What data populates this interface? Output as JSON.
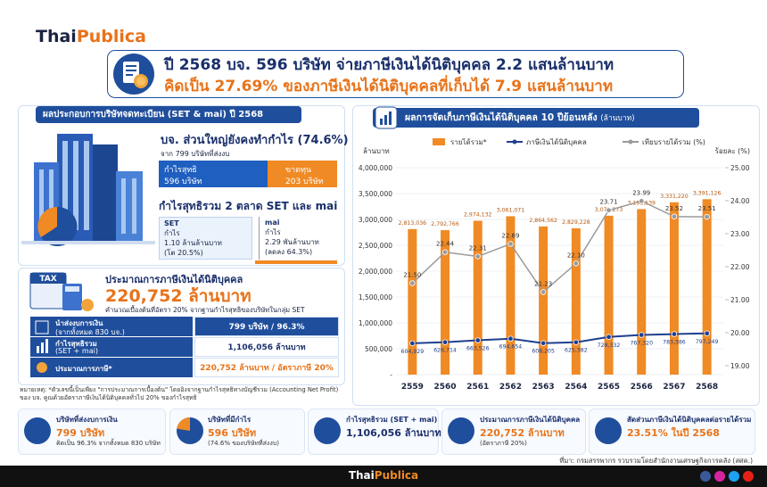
{
  "brand": {
    "thai": "Thai",
    "publica": "Publica"
  },
  "header": {
    "line1": "ปี 2568 บจ. 596 บริษัท จ่ายภาษีเงินได้นิติบุคคล 2.2 แสนล้านบาท",
    "line2": "คิดเป็น 27.69% ของภาษีเงินได้นิติบุคคลที่เก็บได้ 7.9 แสนล้านบาท"
  },
  "results": {
    "title": "ผลประกอบการบริษัทจดทะเบียน (SET & mai) ปี 2568",
    "headline": "บจ. ส่วนใหญ่ยังคงทำกำไร (74.6%)",
    "sub": "จาก 799 บริษัทที่ส่งงบ",
    "profit": {
      "label": "กำไรสุทธิ",
      "value": "596 บริษัท"
    },
    "loss": {
      "label": "ขาดทุน",
      "value": "203 บริษัท"
    },
    "markets_title": "กำไรสุทธิรวม 2 ตลาด SET และ mai",
    "set": {
      "name": "SET",
      "label": "กำไร",
      "value": "1.10 ล้านล้านบาท",
      "change": "(โต 20.5%)"
    },
    "mai": {
      "name": "mai",
      "label": "กำไร",
      "value": "2.29 พันล้านบาท",
      "change": "(ลดลง 64.3%)"
    }
  },
  "tax_estimate": {
    "title": "ประมาณการภาษีเงินได้นิติบุคคล",
    "value": "220,752 ล้านบาท",
    "sub": "คำนวณเบื้องต้นที่อัตรา 20% จากฐานกำไรสุทธิของบริษัทในกลุ่ม SET",
    "rows": [
      {
        "label": "นำส่งงบการเงิน",
        "sublabel": "(จากทั้งหมด 830 บจ.)",
        "value": "799 บริษัท / 96.3%"
      },
      {
        "label": "กำไรสุทธิรวม",
        "sublabel": "(SET + mai)",
        "value": "1,106,056 ล้านบาท"
      },
      {
        "label": "ประมาณการภาษี*",
        "value": "220,752 ล้านบาท / อัตราภาษี 20%"
      }
    ],
    "note": "หมายเหตุ: *ตัวเลขนี้เป็นเพียง \"การประมาณการเบื้องต้น\" โดยอิงจากฐานกำไรสุทธิทางบัญชีรวม (Accounting Net Profit) ของ บจ. คูณด้วยอัตราภาษีเงินได้นิติบุคคลทั่วไป 20% ของกำไรสุทธิ"
  },
  "chart_data": {
    "type": "combo",
    "title": "ผลการจัดเก็บภาษีเงินได้นิติบุคคล 10 ปีย้อนหลัง",
    "subtitle": "(ล้านบาท)",
    "y_label": "ล้านบาท",
    "y2_label": "ร้อยละ (%)",
    "categories": [
      "2559",
      "2560",
      "2561",
      "2562",
      "2563",
      "2564",
      "2565",
      "2566",
      "2567",
      "2568"
    ],
    "series": [
      {
        "name": "รายได้รวม*",
        "kind": "bar",
        "color": "#f08a24",
        "values": [
          2813036,
          2792766,
          2974132,
          3061071,
          2864562,
          2829228,
          3071273,
          3198539,
          3331220,
          3391126
        ],
        "value_labels": [
          "2,813,036",
          "2,792,766",
          "2,974,132",
          "3,061,071",
          "2,864,562",
          "2,829,228",
          "3,071,273",
          "3,198,539",
          "3,331,220",
          "3,391,126"
        ]
      },
      {
        "name": "ภาษีเงินได้นิติบุคคล",
        "kind": "line",
        "color": "#1f3f8f",
        "values": [
          604929,
          626714,
          663526,
          694654,
          608205,
          625382,
          728332,
          767320,
          783386,
          797249
        ],
        "value_labels": [
          "604,929",
          "626,714",
          "663,526",
          "694,654",
          "608,205",
          "625,382",
          "728,332",
          "767,320",
          "783,386",
          "797,249"
        ]
      },
      {
        "name": "เทียบรายได้รวม (%)",
        "kind": "line",
        "axis": "y2",
        "color": "#9a9a9a",
        "values": [
          21.5,
          22.44,
          22.31,
          22.69,
          21.23,
          22.1,
          23.71,
          23.99,
          23.52,
          23.51
        ],
        "value_labels": [
          "21.50",
          "22.44",
          "22.31",
          "22.69",
          "21.23",
          "22.10",
          "23.71",
          "23.99",
          "23.52",
          "23.51"
        ]
      }
    ],
    "ylim": [
      0,
      4000000
    ],
    "yticks": [
      {
        "value": 0,
        "label": "-"
      },
      {
        "value": 500000,
        "label": "500,000"
      },
      {
        "value": 1000000,
        "label": "1,000,000"
      },
      {
        "value": 1500000,
        "label": "1,500,000"
      },
      {
        "value": 2000000,
        "label": "2,000,000"
      },
      {
        "value": 2500000,
        "label": "2,500,000"
      },
      {
        "value": 3000000,
        "label": "3,000,000"
      },
      {
        "value": 3500000,
        "label": "3,500,000"
      },
      {
        "value": 4000000,
        "label": "4,000,000"
      }
    ],
    "y2lim": [
      19,
      25
    ],
    "y2ticks": [
      {
        "value": 19,
        "label": "19.00"
      },
      {
        "value": 20,
        "label": "20.00"
      },
      {
        "value": 21,
        "label": "21.00"
      },
      {
        "value": 22,
        "label": "22.00"
      },
      {
        "value": 23,
        "label": "23.00"
      },
      {
        "value": 24,
        "label": "24.00"
      },
      {
        "value": 25,
        "label": "25.00"
      }
    ],
    "grid": true,
    "legend": "top"
  },
  "footer": {
    "cards": [
      {
        "title": "บริษัทที่ส่งงบการเงิน",
        "value": "799 บริษัท",
        "sub": "คิดเป็น 96.3% จากทั้งหมด 830 บริษัท"
      },
      {
        "title": "บริษัทที่มีกำไร",
        "value": "596 บริษัท",
        "sub": "(74.6% ของบริษัทที่ส่งงบ)"
      },
      {
        "title": "กำไรสุทธิรวม (SET + mai)",
        "value": "1,106,056 ล้านบาท"
      },
      {
        "title": "ประมาณการภาษีเงินได้นิติบุคคล",
        "value": "220,752 ล้านบาท",
        "sub": "(อัตราภาษี 20%)"
      },
      {
        "title": "สัดส่วนภาษีเงินได้นิติบุคคลต่อรายได้รวม",
        "value": "23.51% ในปี 2568"
      }
    ],
    "source": "ที่มา: กรมสรรพากร รวบรวมโดยสำนักงานเศรษฐกิจการคลัง (สศค.)"
  }
}
